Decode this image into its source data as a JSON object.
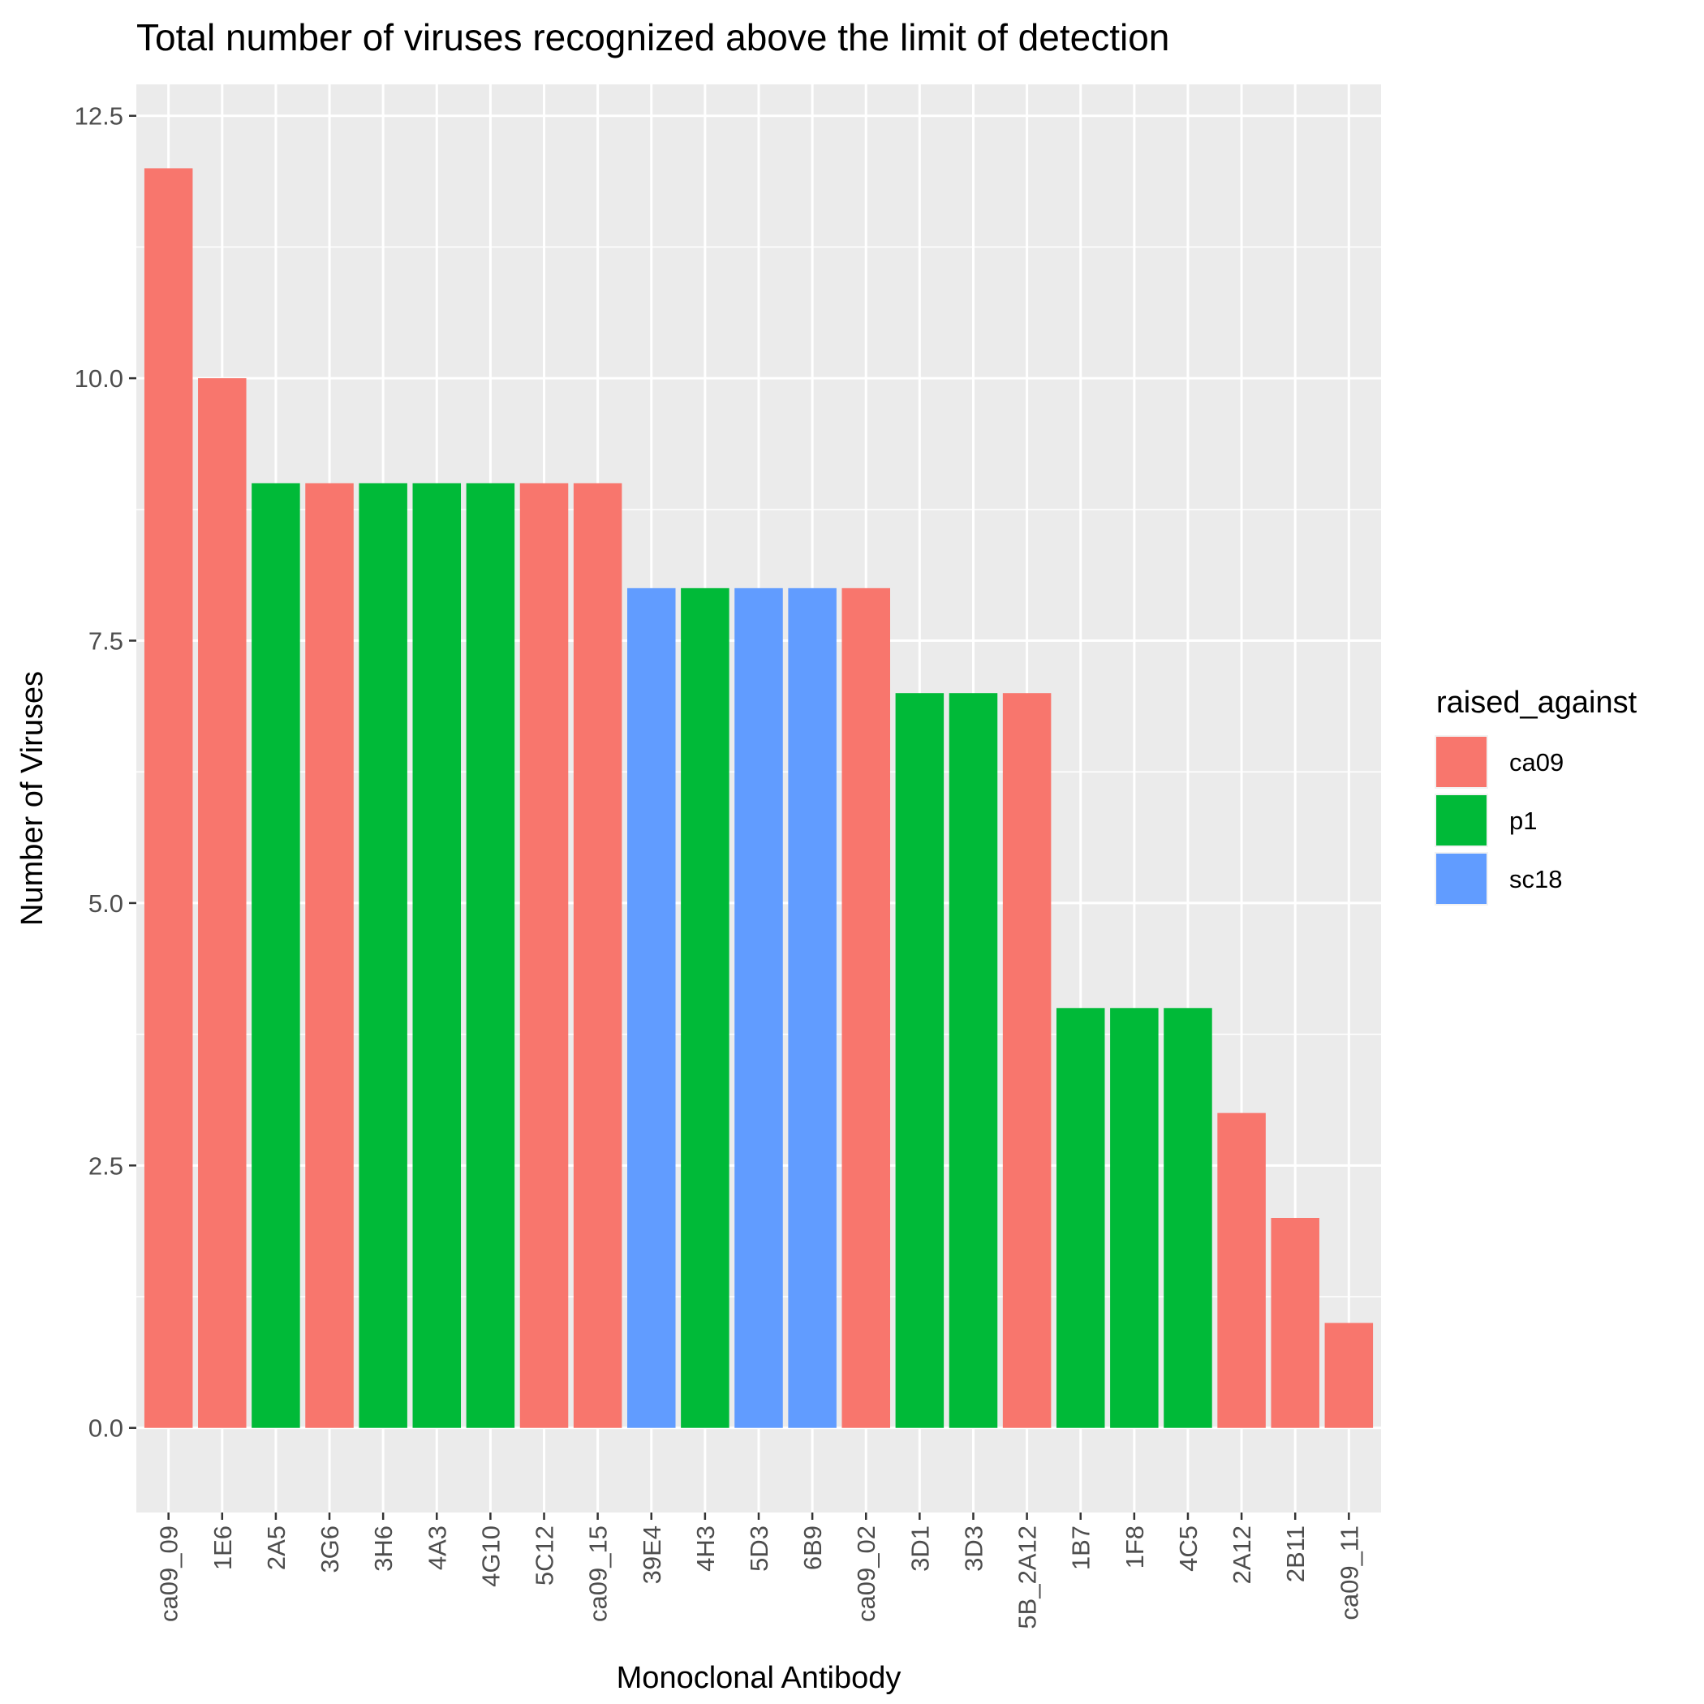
{
  "chart_data": {
    "type": "bar",
    "title": "Total number of viruses recognized above the limit of detection",
    "xlabel": "Monoclonal Antibody",
    "ylabel": "Number of Viruses",
    "ylim": [
      -0.5,
      12.5
    ],
    "yticks": [
      "0.0",
      "2.5",
      "5.0",
      "7.5",
      "10.0",
      "12.5"
    ],
    "grid": true,
    "legend": {
      "title": "raised_against",
      "placement": "right",
      "entries": [
        {
          "label": "ca09",
          "color": "#F8766D"
        },
        {
          "label": "p1",
          "color": "#00BA38"
        },
        {
          "label": "sc18",
          "color": "#619CFF"
        }
      ]
    },
    "categories": [
      "ca09_09",
      "1E6",
      "2A5",
      "3G6",
      "3H6",
      "4A3",
      "4G10",
      "5C12",
      "ca09_15",
      "39E4",
      "4H3",
      "5D3",
      "6B9",
      "ca09_02",
      "3D1",
      "3D3",
      "5B_2A12",
      "1B7",
      "1F8",
      "4C5",
      "2A12",
      "2B11",
      "ca09_11"
    ],
    "values": [
      12,
      10,
      9,
      9,
      9,
      9,
      9,
      9,
      9,
      8,
      8,
      8,
      8,
      8,
      7,
      7,
      7,
      4,
      4,
      4,
      3,
      2,
      1
    ],
    "groups": [
      "ca09",
      "ca09",
      "p1",
      "ca09",
      "p1",
      "p1",
      "p1",
      "ca09",
      "ca09",
      "sc18",
      "p1",
      "sc18",
      "sc18",
      "ca09",
      "p1",
      "p1",
      "ca09",
      "p1",
      "p1",
      "p1",
      "ca09",
      "ca09",
      "ca09"
    ]
  }
}
